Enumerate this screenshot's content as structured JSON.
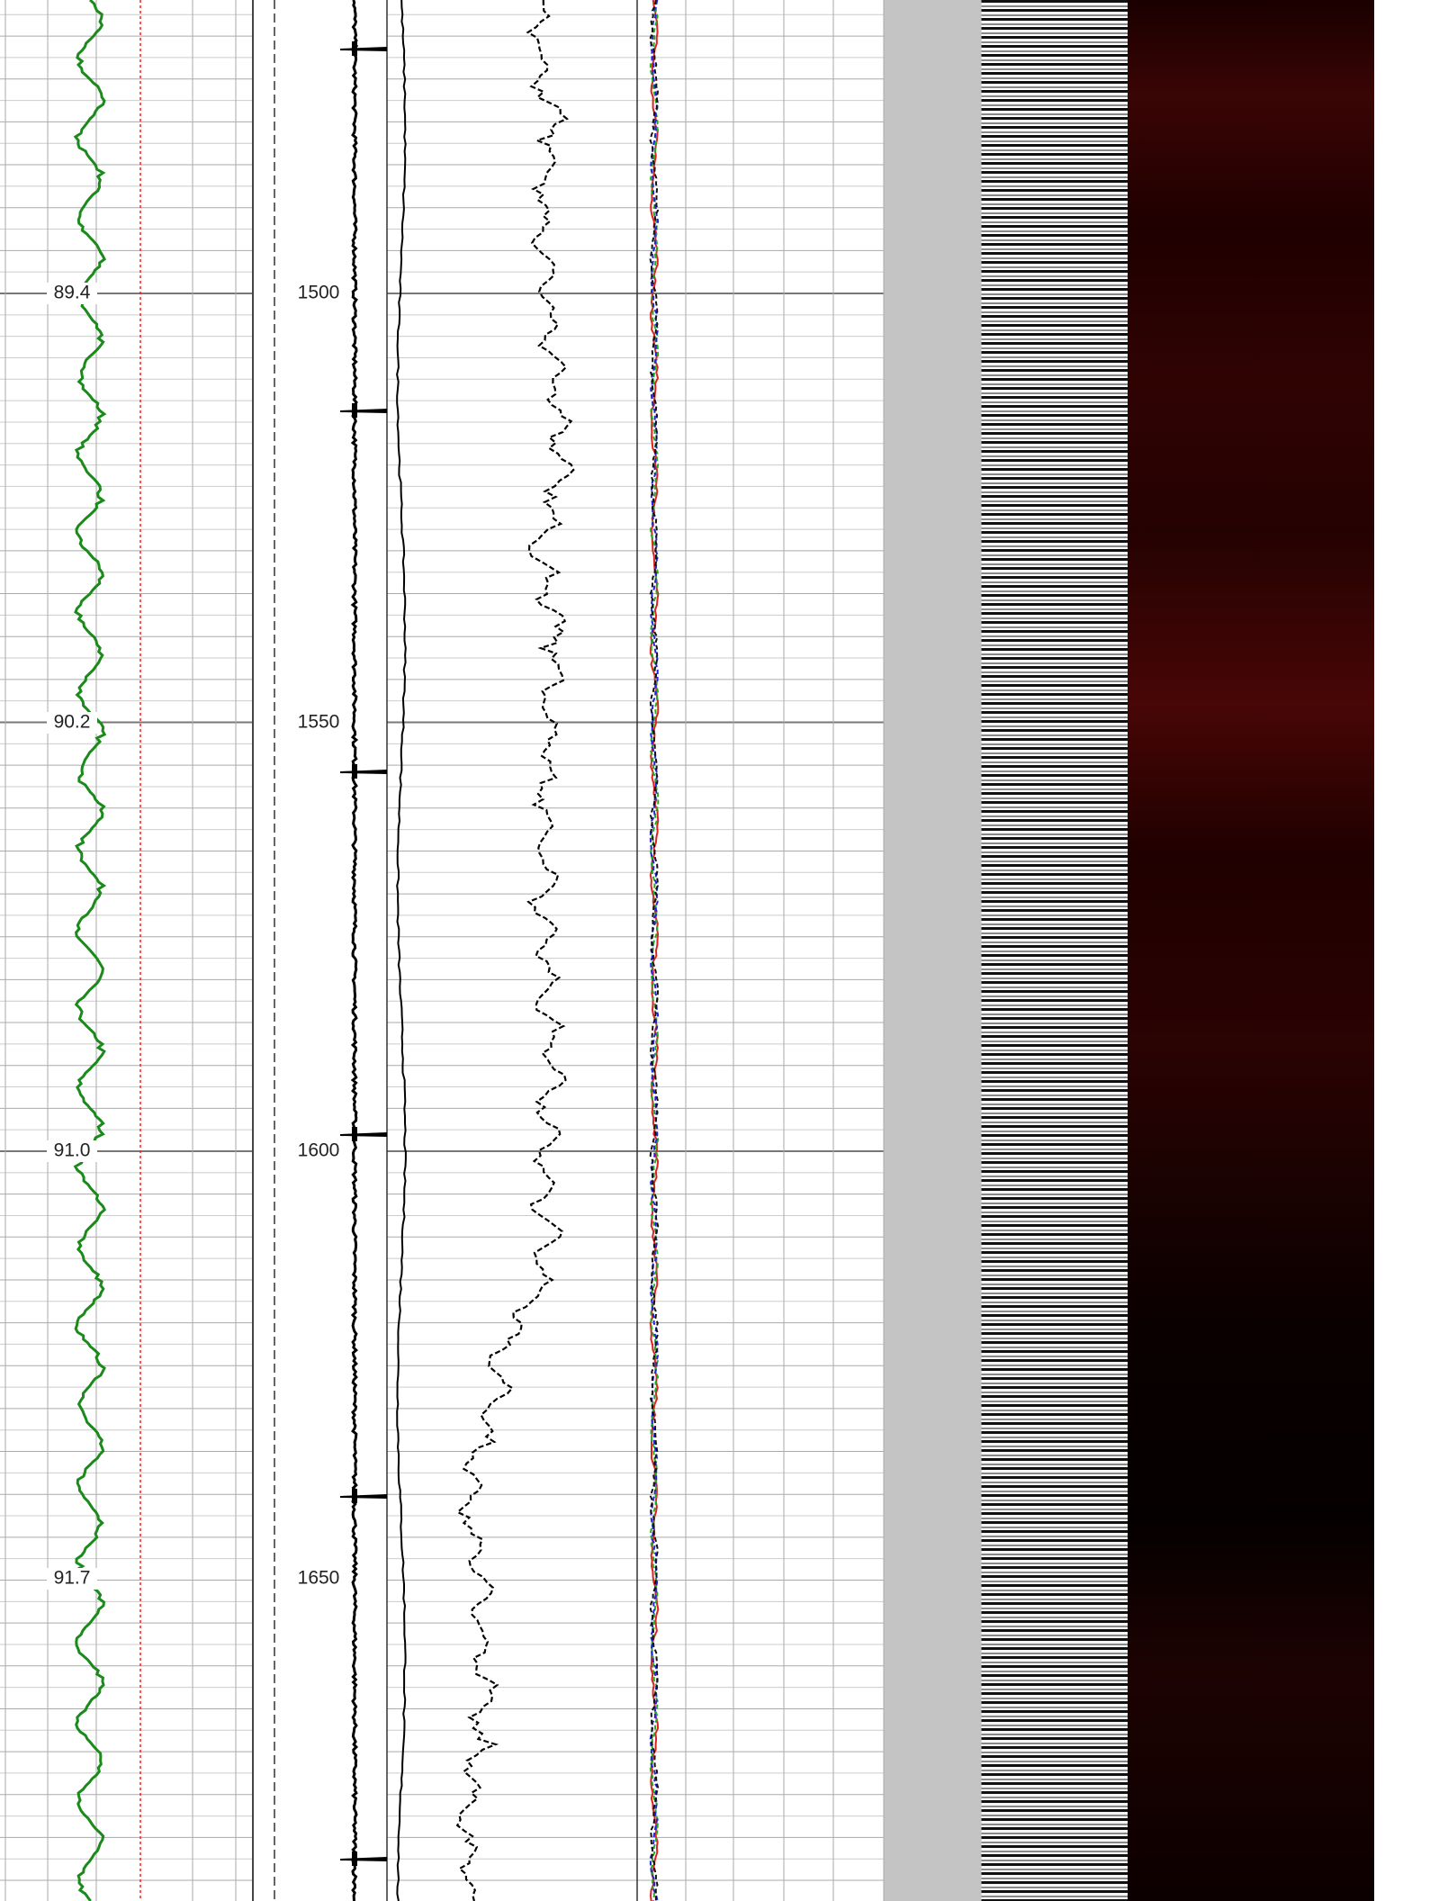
{
  "depth_labels": [
    "1500",
    "1550",
    "1600",
    "1650"
  ],
  "track1_labels": [
    "89.4",
    "90.2",
    "91.0",
    "91.7"
  ]
}
